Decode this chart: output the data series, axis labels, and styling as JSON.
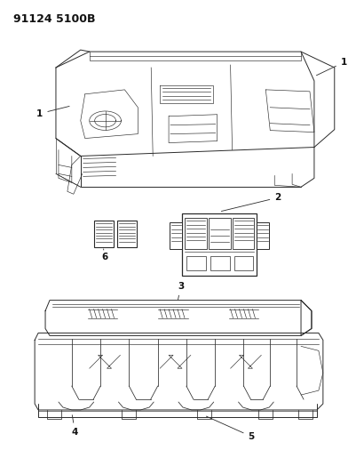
{
  "bg_color": "#ffffff",
  "line_color": "#2a2a2a",
  "label_color": "#111111",
  "fig_width": 4.01,
  "fig_height": 5.33,
  "dpi": 100,
  "code_text": "91124 5100B",
  "code_fontsize": 9,
  "label_fontsize": 7.5,
  "lw_main": 0.7,
  "lw_thin": 0.45,
  "lw_med": 0.55
}
